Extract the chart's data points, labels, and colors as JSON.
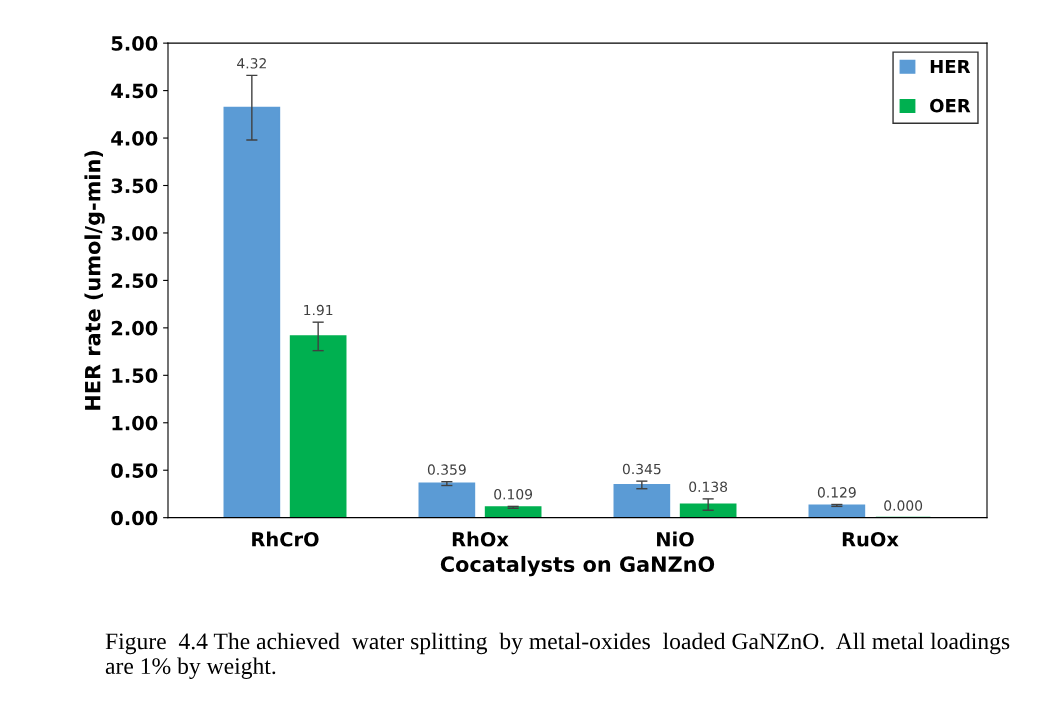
{
  "chart_data": {
    "type": "bar",
    "xlabel": "Cocatalysts on GaNZnO",
    "ylabel": "HER rate (umol/g-min)",
    "categories": [
      "RhCrO",
      "RhOx",
      "NiO",
      "RuOx"
    ],
    "series": [
      {
        "name": "HER",
        "color": "#5b9bd5",
        "values": [
          4.32,
          0.359,
          0.345,
          0.129
        ],
        "errors": [
          0.34,
          0.02,
          0.04,
          0.01
        ],
        "value_labels": [
          "4.32",
          "0.359",
          "0.345",
          "0.129"
        ]
      },
      {
        "name": "OER",
        "color": "#00b050",
        "values": [
          1.91,
          0.109,
          0.138,
          0.0
        ],
        "errors": [
          0.15,
          0.01,
          0.06,
          0
        ],
        "value_labels": [
          "1.91",
          "0.109",
          "0.138",
          "0.000"
        ]
      }
    ],
    "ylim": [
      0,
      5
    ],
    "yticks": [
      {
        "value": 0,
        "label": "0.00"
      },
      {
        "value": 0.5,
        "label": "0.50"
      },
      {
        "value": 1,
        "label": "1.00"
      },
      {
        "value": 1.5,
        "label": "1.50"
      },
      {
        "value": 2,
        "label": "2.00"
      },
      {
        "value": 2.5,
        "label": "2.50"
      },
      {
        "value": 3,
        "label": "3.00"
      },
      {
        "value": 3.5,
        "label": "3.50"
      },
      {
        "value": 4,
        "label": "4.00"
      },
      {
        "value": 4.5,
        "label": "4.50"
      },
      {
        "value": 5,
        "label": "5.00"
      }
    ],
    "grid": false,
    "legend": "top right",
    "annotations": [
      "Figure  4.4 The achieved  water splitting  by metal-oxides  loaded GaNZnO.  All metal loadings  are 1% by weight."
    ]
  }
}
